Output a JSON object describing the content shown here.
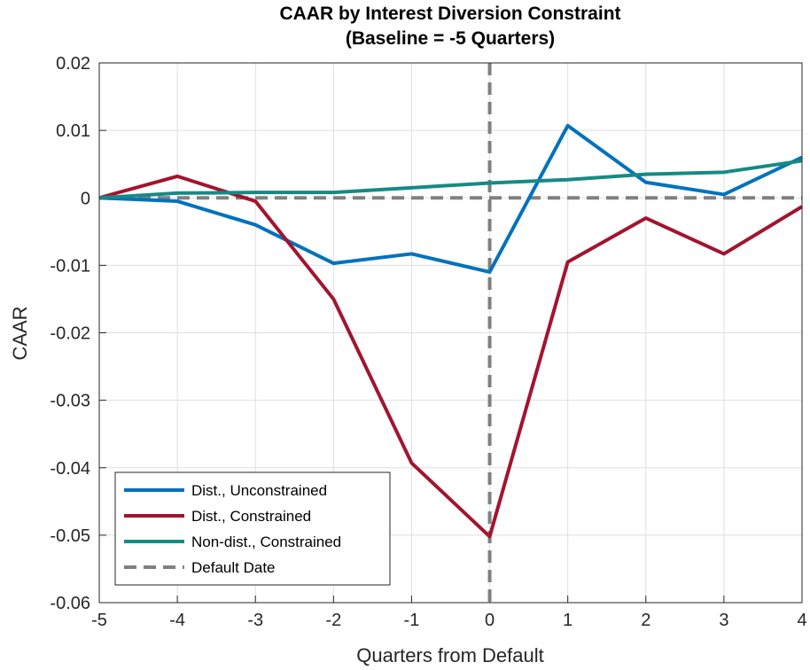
{
  "chart_data": {
    "type": "line",
    "title": "CAAR by Interest Diversion Constraint",
    "subtitle": "(Baseline = -5 Quarters)",
    "x_label": "Quarters from Default",
    "y_label": "CAAR",
    "x": [
      -5,
      -4,
      -3,
      -2,
      -1,
      0,
      1,
      2,
      3,
      4
    ],
    "series": [
      {
        "name": "Dist., Unconstrained",
        "color": "#0072bd",
        "values": [
          0,
          -0.0005,
          -0.004,
          -0.0097,
          -0.0083,
          -0.011,
          0.0107,
          0.0023,
          0.0005,
          0.006
        ]
      },
      {
        "name": "Dist., Constrained",
        "color": "#a2142f",
        "values": [
          0,
          0.0032,
          -0.0005,
          -0.015,
          -0.0393,
          -0.0502,
          -0.0095,
          -0.003,
          -0.0083,
          -0.0013
        ]
      },
      {
        "name": "Non-dist., Constrained",
        "color": "#168a84",
        "values": [
          0,
          0.0007,
          0.0008,
          0.0008,
          0.0015,
          0.0022,
          0.0027,
          0.0035,
          0.0038,
          0.0055
        ]
      }
    ],
    "reference_line": {
      "name": "Default Date",
      "color": "#808080",
      "x": 0,
      "y": 0
    },
    "xlim": [
      -5,
      4
    ],
    "xticks": [
      -5,
      -4,
      -3,
      -2,
      -1,
      0,
      1,
      2,
      3,
      4
    ],
    "ylim": [
      -0.06,
      0.02
    ],
    "yticks": [
      -0.06,
      -0.05,
      -0.04,
      -0.03,
      -0.02,
      -0.01,
      0,
      0.01,
      0.02
    ],
    "grid": true,
    "legend": "lower left"
  }
}
